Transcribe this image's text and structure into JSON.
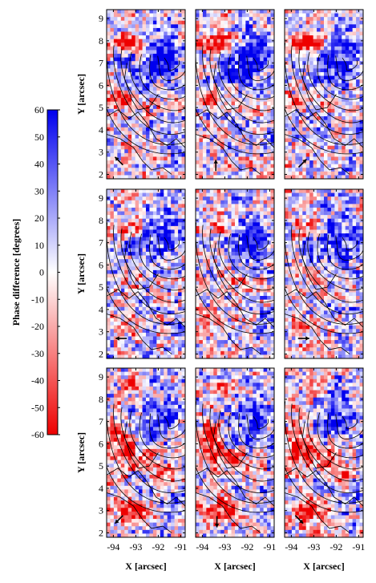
{
  "figure": {
    "colorbar": {
      "label": "Phase difference [degrees]",
      "ticks": [
        60,
        50,
        40,
        30,
        20,
        10,
        0,
        -10,
        -20,
        -30,
        -40,
        -50,
        -60
      ],
      "range": [
        -60,
        60
      ],
      "colors": {
        "negative": "#ee0000",
        "zero": "#ffffff",
        "positive": "#0000ee"
      }
    },
    "axes": {
      "xlabel": "X [arcsec]",
      "ylabel": "Y [arcsec]",
      "xticks": [
        "-94",
        "-93",
        "-92",
        "-91"
      ],
      "yticks": [
        "9",
        "8",
        "7",
        "6",
        "5",
        "4",
        "3",
        "2"
      ],
      "xrange": [
        -94.3,
        -90.8
      ],
      "yrange": [
        1.8,
        9.4
      ]
    },
    "panels": [
      {
        "id": "r1c1",
        "arrow": {
          "x": -93.75,
          "y": 2.6,
          "direction": "up-left"
        }
      },
      {
        "id": "r1c2",
        "arrow": {
          "x": -93.4,
          "y": 2.4,
          "direction": "up"
        }
      },
      {
        "id": "r1c3",
        "arrow": {
          "x": -93.5,
          "y": 2.5,
          "direction": "up-right"
        }
      },
      {
        "id": "r2c1",
        "arrow": {
          "x": -93.65,
          "y": 2.7,
          "direction": "left"
        }
      },
      {
        "id": "r2c2",
        "arrow": null
      },
      {
        "id": "r2c3",
        "arrow": {
          "x": -93.45,
          "y": 2.7,
          "direction": "right"
        }
      },
      {
        "id": "r3c1",
        "arrow": {
          "x": -93.75,
          "y": 2.6,
          "direction": "down-left"
        }
      },
      {
        "id": "r3c2",
        "arrow": {
          "x": -93.35,
          "y": 2.5,
          "direction": "down"
        }
      },
      {
        "id": "r3c3",
        "arrow": {
          "x": -93.65,
          "y": 2.6,
          "direction": "down-right"
        }
      }
    ]
  }
}
